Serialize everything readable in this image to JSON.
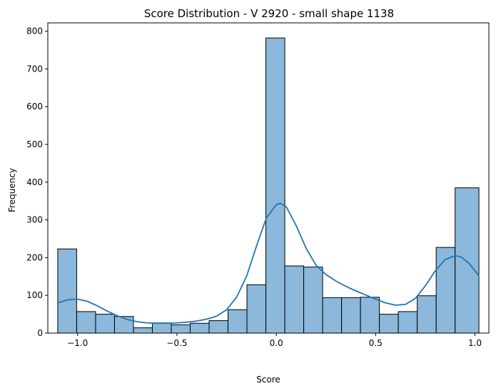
{
  "chart_data": {
    "type": "bar",
    "title": "Score Distribution - V 2920 - small shape 1138",
    "xlabel": "Score",
    "ylabel": "Frequency",
    "xlim": [
      -1.15,
      1.07
    ],
    "ylim": [
      0,
      822
    ],
    "x_ticks": [
      -1.0,
      -0.5,
      0.0,
      0.5,
      1.0
    ],
    "x_tick_labels": [
      "−1.0",
      "−0.5",
      "0.0",
      "0.5",
      "1.0"
    ],
    "y_ticks": [
      0,
      100,
      200,
      300,
      400,
      500,
      600,
      700,
      800
    ],
    "y_tick_labels": [
      "0",
      "100",
      "200",
      "300",
      "400",
      "500",
      "600",
      "700",
      "800"
    ],
    "grid": false,
    "bin_width": 0.0952,
    "bins": [
      {
        "x0": -1.1,
        "x1": -1.0048,
        "count": 223
      },
      {
        "x0": -1.0048,
        "x1": -0.9095,
        "count": 57
      },
      {
        "x0": -0.9095,
        "x1": -0.8143,
        "count": 50
      },
      {
        "x0": -0.8143,
        "x1": -0.719,
        "count": 44
      },
      {
        "x0": -0.719,
        "x1": -0.6238,
        "count": 14
      },
      {
        "x0": -0.6238,
        "x1": -0.5286,
        "count": 27
      },
      {
        "x0": -0.5286,
        "x1": -0.4333,
        "count": 22
      },
      {
        "x0": -0.4333,
        "x1": -0.3381,
        "count": 26
      },
      {
        "x0": -0.3381,
        "x1": -0.2429,
        "count": 33
      },
      {
        "x0": -0.2429,
        "x1": -0.1476,
        "count": 62
      },
      {
        "x0": -0.1476,
        "x1": -0.0524,
        "count": 128
      },
      {
        "x0": -0.0524,
        "x1": 0.0429,
        "count": 782
      },
      {
        "x0": 0.0429,
        "x1": 0.1381,
        "count": 178
      },
      {
        "x0": 0.1381,
        "x1": 0.2333,
        "count": 175
      },
      {
        "x0": 0.2333,
        "x1": 0.3286,
        "count": 94
      },
      {
        "x0": 0.3286,
        "x1": 0.4238,
        "count": 94
      },
      {
        "x0": 0.4238,
        "x1": 0.519,
        "count": 95
      },
      {
        "x0": 0.519,
        "x1": 0.6143,
        "count": 50
      },
      {
        "x0": 0.6143,
        "x1": 0.7095,
        "count": 57
      },
      {
        "x0": 0.7095,
        "x1": 0.8048,
        "count": 99
      },
      {
        "x0": 0.8048,
        "x1": 0.9,
        "count": 227
      },
      {
        "x0": 0.9,
        "x1": 1.02,
        "count": 385
      }
    ],
    "kde": {
      "x": [
        -1.1,
        -1.05,
        -1.0,
        -0.95,
        -0.9,
        -0.85,
        -0.8,
        -0.75,
        -0.7,
        -0.65,
        -0.6,
        -0.55,
        -0.5,
        -0.45,
        -0.4,
        -0.35,
        -0.3,
        -0.25,
        -0.2,
        -0.15,
        -0.1,
        -0.05,
        0.0,
        0.02,
        0.05,
        0.1,
        0.15,
        0.2,
        0.25,
        0.3,
        0.35,
        0.4,
        0.45,
        0.5,
        0.55,
        0.6,
        0.65,
        0.7,
        0.75,
        0.8,
        0.85,
        0.9,
        0.93,
        0.97,
        1.0,
        1.02
      ],
      "y": [
        80,
        88,
        90,
        84,
        72,
        58,
        46,
        36,
        30,
        27,
        26,
        26,
        27,
        29,
        32,
        37,
        45,
        62,
        95,
        150,
        230,
        305,
        340,
        344,
        335,
        285,
        225,
        180,
        155,
        138,
        124,
        112,
        101,
        90,
        80,
        74,
        76,
        92,
        125,
        165,
        195,
        205,
        202,
        185,
        165,
        152
      ]
    },
    "bar_color": "#8bb8db",
    "line_color": "#1f77b4"
  }
}
